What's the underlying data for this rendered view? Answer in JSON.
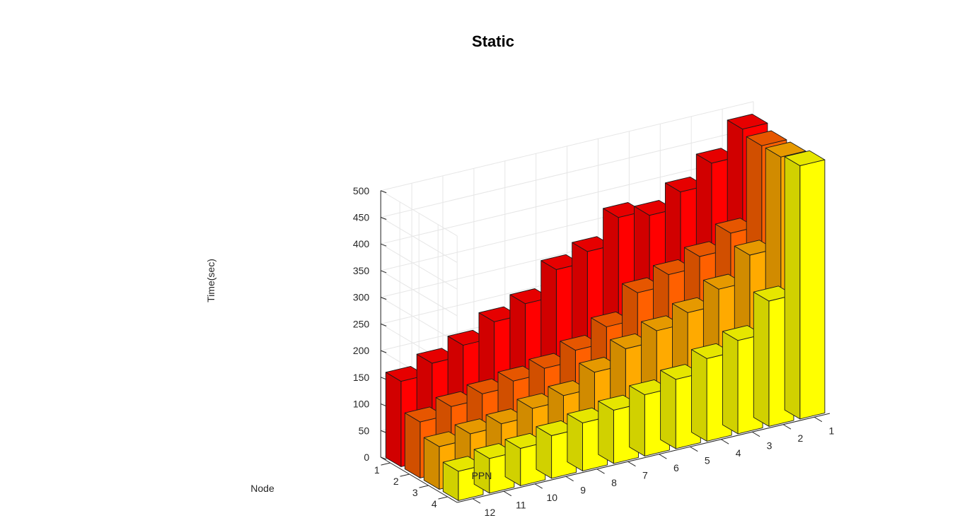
{
  "chart_data": {
    "type": "bar3d",
    "title": "Static",
    "xlabel": "PPN",
    "ylabel": "Node",
    "zlabel": "Time(sec)",
    "ppn": [
      1,
      2,
      3,
      4,
      5,
      6,
      7,
      8,
      9,
      10,
      11,
      12
    ],
    "nodes": [
      1,
      2,
      3,
      4
    ],
    "zlim": [
      0,
      500
    ],
    "zticks": [
      0,
      50,
      100,
      150,
      200,
      250,
      300,
      350,
      400,
      450,
      500
    ],
    "grid": true,
    "colors": [
      "#ff0000",
      "#ff6000",
      "#ffaa00",
      "#ffff00"
    ],
    "series": [
      {
        "node": 1,
        "values": [
          480,
          430,
          390,
          360,
          370,
          320,
          300,
          250,
          230,
          200,
          180,
          160
        ]
      },
      {
        "node": 2,
        "values": [
          470,
          320,
          290,
          270,
          250,
          200,
          170,
          150,
          140,
          130,
          120,
          105
        ]
      },
      {
        "node": 3,
        "values": [
          470,
          300,
          250,
          220,
          200,
          180,
          150,
          120,
          110,
          95,
          90,
          80
        ]
      },
      {
        "node": 4,
        "values": [
          475,
          235,
          175,
          155,
          130,
          115,
          100,
          90,
          80,
          70,
          65,
          55
        ]
      }
    ]
  }
}
